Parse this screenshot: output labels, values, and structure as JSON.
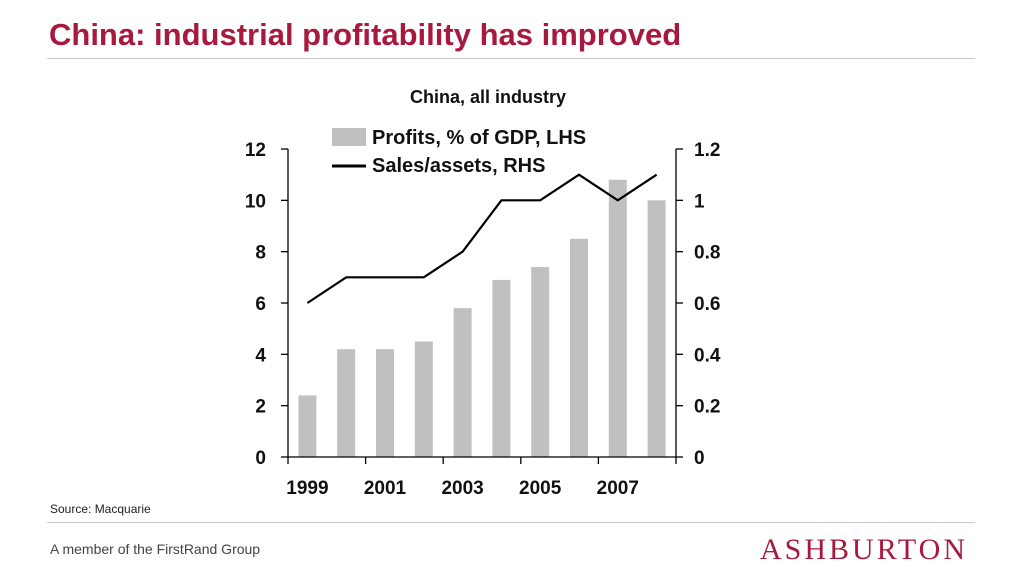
{
  "slide": {
    "title": "China: industrial profitability has improved",
    "source": "Source: Macquarie",
    "footer": "A member of the FirstRand Group",
    "brand": "ASHBURTON",
    "accent_color": "#a8193e"
  },
  "chart_data": {
    "type": "bar",
    "title": "China, all industry",
    "x": [
      1999,
      2000,
      2001,
      2002,
      2003,
      2004,
      2005,
      2006,
      2007,
      2008
    ],
    "x_tick_labels": [
      "1999",
      "2001",
      "2003",
      "2005",
      "2007"
    ],
    "series": [
      {
        "name": "Profits, % of GDP, LHS",
        "kind": "bar",
        "axis": "left",
        "color": "#c0c0c0",
        "values": [
          2.4,
          4.2,
          4.2,
          4.5,
          5.8,
          6.9,
          7.4,
          8.5,
          10.8,
          10.0
        ]
      },
      {
        "name": "Sales/assets, RHS",
        "kind": "line",
        "axis": "right",
        "color": "#000000",
        "values": [
          0.6,
          0.7,
          0.7,
          0.7,
          0.8,
          1.0,
          1.0,
          1.1,
          1.0,
          1.1
        ]
      }
    ],
    "y_left": {
      "range": [
        0,
        12
      ],
      "ticks": [
        "0",
        "2",
        "4",
        "6",
        "8",
        "10",
        "12"
      ]
    },
    "y_right": {
      "range": [
        0,
        1.2
      ],
      "ticks": [
        "0",
        "0.2",
        "0.4",
        "0.6",
        "0.8",
        "1",
        "1.2"
      ]
    },
    "grid": false,
    "legend_position": "top-center"
  }
}
